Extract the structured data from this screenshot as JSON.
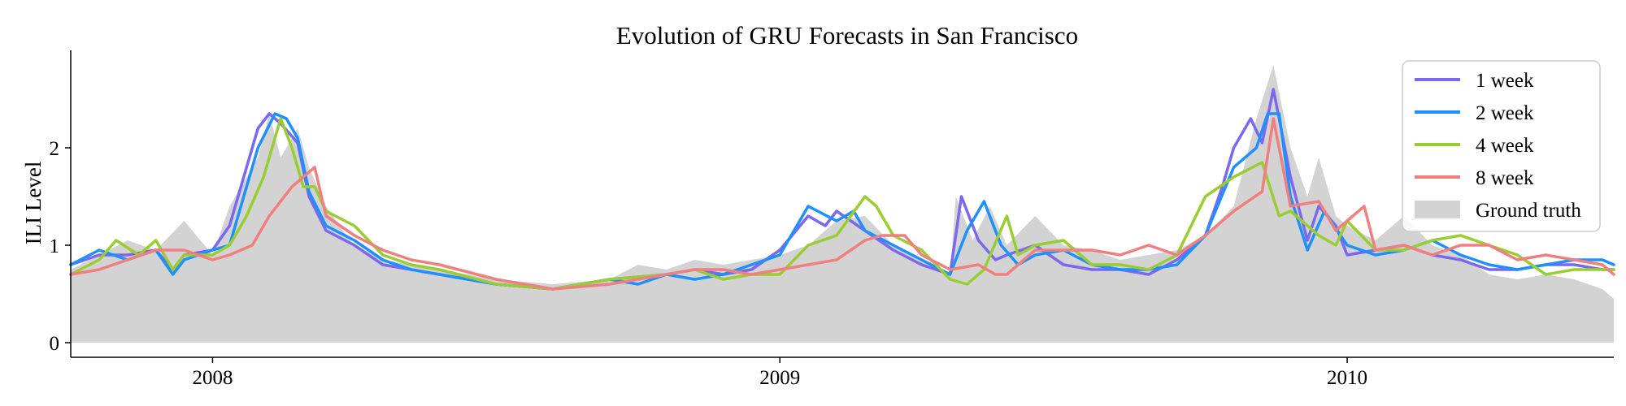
{
  "chart_data": {
    "type": "line",
    "title": "Evolution of GRU Forecasts in San Francisco",
    "xlabel": "",
    "ylabel": "ILI Level",
    "x_ticks": [
      {
        "label": "2008",
        "value": 2008.0
      },
      {
        "label": "2009",
        "value": 2009.0
      },
      {
        "label": "2010",
        "value": 2010.0
      }
    ],
    "y_ticks": [
      {
        "label": "0",
        "value": 0
      },
      {
        "label": "1",
        "value": 1
      },
      {
        "label": "2",
        "value": 2
      }
    ],
    "xlim": [
      2007.75,
      2010.47
    ],
    "ylim": [
      -0.15,
      3.0
    ],
    "grid": false,
    "legend_position": "top-right",
    "colors": {
      "1 week": "#7B68EE",
      "2 week": "#1E90FF",
      "4 week": "#9ACD32",
      "8 week": "#F08080",
      "Ground truth": "#D3D3D3"
    },
    "ground_truth": {
      "name": "Ground truth",
      "x": [
        2007.75,
        2007.8,
        2007.85,
        2007.9,
        2007.95,
        2008.0,
        2008.03,
        2008.05,
        2008.08,
        2008.1,
        2008.12,
        2008.15,
        2008.17,
        2008.2,
        2008.23,
        2008.25,
        2008.3,
        2008.35,
        2008.4,
        2008.5,
        2008.6,
        2008.7,
        2008.75,
        2008.8,
        2008.85,
        2008.9,
        2008.95,
        2009.0,
        2009.05,
        2009.1,
        2009.15,
        2009.2,
        2009.25,
        2009.3,
        2009.31,
        2009.34,
        2009.37,
        2009.4,
        2009.45,
        2009.5,
        2009.55,
        2009.6,
        2009.65,
        2009.7,
        2009.75,
        2009.8,
        2009.84,
        2009.87,
        2009.9,
        2009.93,
        2009.95,
        2009.98,
        2010.0,
        2010.05,
        2010.1,
        2010.15,
        2010.2,
        2010.25,
        2010.3,
        2010.35,
        2010.4,
        2010.45,
        2010.47
      ],
      "y": [
        0.75,
        0.9,
        1.05,
        0.95,
        1.25,
        0.9,
        1.4,
        1.6,
        1.9,
        2.35,
        1.9,
        2.2,
        1.8,
        1.4,
        1.15,
        1.0,
        0.85,
        0.8,
        0.75,
        0.65,
        0.6,
        0.65,
        0.8,
        0.75,
        0.85,
        0.8,
        0.85,
        0.9,
        1.0,
        1.25,
        1.3,
        1.0,
        0.85,
        0.7,
        1.5,
        1.05,
        1.4,
        1.0,
        1.3,
        1.0,
        0.95,
        0.85,
        0.9,
        0.95,
        1.1,
        1.4,
        2.3,
        2.85,
        2.0,
        1.5,
        1.9,
        1.3,
        1.2,
        1.05,
        1.3,
        1.0,
        0.9,
        0.7,
        0.65,
        0.7,
        0.65,
        0.55,
        0.45
      ]
    },
    "series": [
      {
        "name": "1 week",
        "x": [
          2007.75,
          2007.8,
          2007.85,
          2007.9,
          2007.93,
          2007.95,
          2008.0,
          2008.03,
          2008.05,
          2008.08,
          2008.1,
          2008.12,
          2008.15,
          2008.17,
          2008.2,
          2008.25,
          2008.3,
          2008.35,
          2008.4,
          2008.5,
          2008.6,
          2008.7,
          2008.8,
          2008.85,
          2008.9,
          2008.95,
          2009.0,
          2009.05,
          2009.08,
          2009.1,
          2009.15,
          2009.2,
          2009.25,
          2009.3,
          2009.32,
          2009.35,
          2009.38,
          2009.4,
          2009.45,
          2009.5,
          2009.55,
          2009.6,
          2009.65,
          2009.7,
          2009.75,
          2009.78,
          2009.8,
          2009.83,
          2009.85,
          2009.87,
          2009.9,
          2009.93,
          2009.95,
          2009.98,
          2010.0,
          2010.05,
          2010.1,
          2010.15,
          2010.2,
          2010.25,
          2010.3,
          2010.35,
          2010.4,
          2010.45,
          2010.47
        ],
        "y": [
          0.8,
          0.9,
          0.9,
          0.95,
          0.75,
          0.9,
          0.95,
          1.2,
          1.6,
          2.2,
          2.35,
          2.25,
          2.05,
          1.5,
          1.15,
          1.0,
          0.8,
          0.75,
          0.7,
          0.6,
          0.55,
          0.65,
          0.7,
          0.75,
          0.7,
          0.75,
          0.95,
          1.3,
          1.2,
          1.35,
          1.15,
          0.95,
          0.8,
          0.7,
          1.5,
          1.05,
          0.85,
          0.9,
          1.0,
          0.8,
          0.75,
          0.75,
          0.7,
          0.85,
          1.1,
          1.6,
          2.0,
          2.3,
          2.05,
          2.6,
          1.7,
          1.05,
          1.4,
          1.2,
          0.9,
          0.95,
          1.0,
          0.9,
          0.85,
          0.75,
          0.75,
          0.8,
          0.8,
          0.75,
          0.75
        ]
      },
      {
        "name": "2 week",
        "x": [
          2007.75,
          2007.8,
          2007.85,
          2007.9,
          2007.93,
          2007.95,
          2008.0,
          2008.03,
          2008.05,
          2008.08,
          2008.11,
          2008.13,
          2008.15,
          2008.17,
          2008.2,
          2008.25,
          2008.3,
          2008.35,
          2008.4,
          2008.5,
          2008.6,
          2008.7,
          2008.75,
          2008.8,
          2008.85,
          2008.9,
          2008.95,
          2009.0,
          2009.05,
          2009.1,
          2009.13,
          2009.15,
          2009.2,
          2009.25,
          2009.3,
          2009.33,
          2009.36,
          2009.39,
          2009.42,
          2009.45,
          2009.5,
          2009.55,
          2009.6,
          2009.65,
          2009.7,
          2009.75,
          2009.8,
          2009.84,
          2009.86,
          2009.88,
          2009.9,
          2009.93,
          2009.96,
          2010.0,
          2010.05,
          2010.1,
          2010.15,
          2010.2,
          2010.25,
          2010.3,
          2010.35,
          2010.4,
          2010.45,
          2010.47
        ],
        "y": [
          0.8,
          0.95,
          0.85,
          0.95,
          0.7,
          0.85,
          0.95,
          1.0,
          1.4,
          2.0,
          2.35,
          2.3,
          2.1,
          1.55,
          1.2,
          1.05,
          0.85,
          0.75,
          0.7,
          0.6,
          0.55,
          0.65,
          0.6,
          0.7,
          0.65,
          0.7,
          0.8,
          0.9,
          1.4,
          1.25,
          1.35,
          1.15,
          1.0,
          0.85,
          0.7,
          1.15,
          1.45,
          1.0,
          0.8,
          0.9,
          0.95,
          0.8,
          0.75,
          0.75,
          0.8,
          1.1,
          1.8,
          2.0,
          2.35,
          2.35,
          1.5,
          0.95,
          1.35,
          1.0,
          0.9,
          0.95,
          1.05,
          0.9,
          0.8,
          0.75,
          0.8,
          0.85,
          0.85,
          0.8
        ]
      },
      {
        "name": "4 week",
        "x": [
          2007.75,
          2007.8,
          2007.83,
          2007.87,
          2007.9,
          2007.93,
          2007.95,
          2008.0,
          2008.03,
          2008.06,
          2008.09,
          2008.12,
          2008.14,
          2008.16,
          2008.18,
          2008.2,
          2008.25,
          2008.3,
          2008.35,
          2008.4,
          2008.5,
          2008.6,
          2008.7,
          2008.8,
          2008.85,
          2008.9,
          2008.95,
          2009.0,
          2009.05,
          2009.1,
          2009.15,
          2009.17,
          2009.2,
          2009.25,
          2009.3,
          2009.33,
          2009.36,
          2009.4,
          2009.42,
          2009.45,
          2009.5,
          2009.55,
          2009.6,
          2009.65,
          2009.7,
          2009.75,
          2009.8,
          2009.85,
          2009.88,
          2009.9,
          2009.95,
          2009.98,
          2010.0,
          2010.05,
          2010.1,
          2010.15,
          2010.2,
          2010.25,
          2010.3,
          2010.35,
          2010.4,
          2010.45,
          2010.47
        ],
        "y": [
          0.7,
          0.85,
          1.05,
          0.9,
          1.05,
          0.75,
          0.9,
          0.9,
          1.0,
          1.3,
          1.7,
          2.3,
          2.0,
          1.6,
          1.6,
          1.35,
          1.2,
          0.9,
          0.8,
          0.75,
          0.6,
          0.55,
          0.65,
          0.7,
          0.75,
          0.65,
          0.7,
          0.7,
          1.0,
          1.1,
          1.5,
          1.4,
          1.1,
          0.95,
          0.65,
          0.6,
          0.75,
          1.3,
          0.9,
          1.0,
          1.05,
          0.8,
          0.8,
          0.75,
          0.9,
          1.5,
          1.7,
          1.85,
          1.3,
          1.35,
          1.1,
          1.0,
          1.25,
          0.95,
          0.95,
          1.05,
          1.1,
          1.0,
          0.9,
          0.7,
          0.75,
          0.75,
          0.75
        ]
      },
      {
        "name": "8 week",
        "x": [
          2007.75,
          2007.8,
          2007.85,
          2007.9,
          2007.95,
          2008.0,
          2008.03,
          2008.07,
          2008.1,
          2008.14,
          2008.18,
          2008.2,
          2008.25,
          2008.3,
          2008.35,
          2008.4,
          2008.5,
          2008.6,
          2008.7,
          2008.8,
          2008.85,
          2008.9,
          2008.95,
          2009.0,
          2009.05,
          2009.1,
          2009.15,
          2009.18,
          2009.22,
          2009.25,
          2009.3,
          2009.35,
          2009.38,
          2009.4,
          2009.45,
          2009.5,
          2009.55,
          2009.6,
          2009.65,
          2009.7,
          2009.75,
          2009.8,
          2009.85,
          2009.87,
          2009.9,
          2009.95,
          2009.98,
          2010.0,
          2010.03,
          2010.05,
          2010.1,
          2010.15,
          2010.2,
          2010.25,
          2010.3,
          2010.35,
          2010.4,
          2010.45,
          2010.47
        ],
        "y": [
          0.7,
          0.75,
          0.85,
          0.95,
          0.95,
          0.85,
          0.9,
          1.0,
          1.3,
          1.6,
          1.8,
          1.3,
          1.1,
          0.95,
          0.85,
          0.8,
          0.65,
          0.55,
          0.6,
          0.7,
          0.75,
          0.75,
          0.7,
          0.75,
          0.8,
          0.85,
          1.05,
          1.1,
          1.1,
          0.9,
          0.75,
          0.8,
          0.7,
          0.7,
          0.95,
          0.95,
          0.95,
          0.9,
          1.0,
          0.9,
          1.1,
          1.35,
          1.55,
          2.3,
          1.4,
          1.45,
          1.15,
          1.25,
          1.4,
          0.95,
          1.0,
          0.9,
          1.0,
          1.0,
          0.85,
          0.9,
          0.85,
          0.8,
          0.7
        ]
      }
    ]
  }
}
